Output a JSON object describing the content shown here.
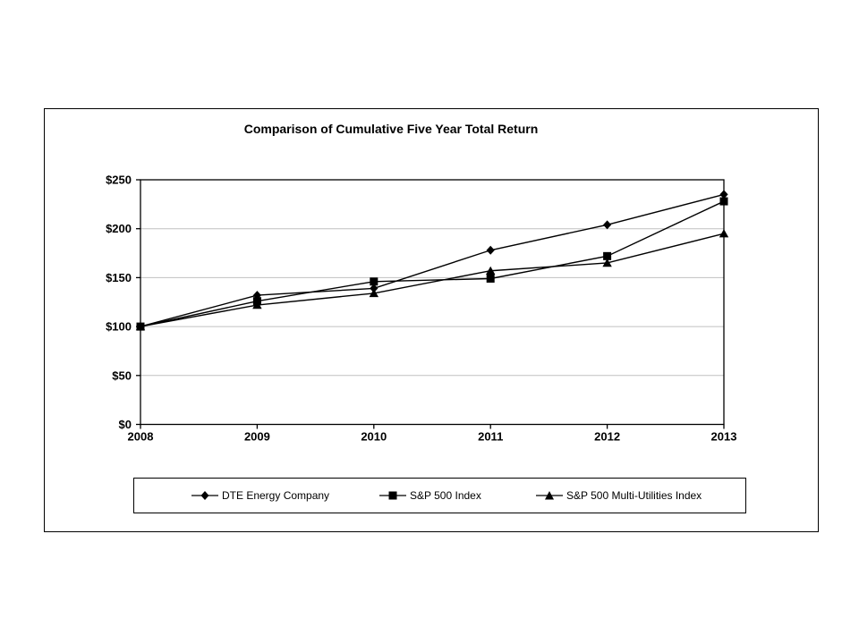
{
  "chart": {
    "colors": {
      "series": "#000000",
      "gridline": "#c0c0c0",
      "frame": "#000000",
      "background": "#ffffff"
    }
  },
  "chart_data": {
    "type": "line",
    "title": "Comparison of Cumulative Five Year Total Return",
    "categories": [
      "2008",
      "2009",
      "2010",
      "2011",
      "2012",
      "2013"
    ],
    "series": [
      {
        "name": "DTE Energy Company",
        "marker": "diamond",
        "values": [
          100,
          132,
          139,
          178,
          204,
          235
        ]
      },
      {
        "name": "S&P 500 Index",
        "marker": "square",
        "values": [
          100,
          126,
          146,
          149,
          172,
          228
        ]
      },
      {
        "name": "S&P 500 Multi-Utilities Index",
        "marker": "triangle",
        "values": [
          100,
          122,
          134,
          157,
          165,
          195
        ]
      }
    ],
    "xlabel": "",
    "ylabel": "",
    "ylim": [
      0,
      250
    ],
    "y_ticks": [
      0,
      50,
      100,
      150,
      200,
      250
    ],
    "y_tick_labels": [
      "$0",
      "$50",
      "$100",
      "$150",
      "$200",
      "$250"
    ],
    "grid": "horizontal",
    "legend_position": "bottom"
  }
}
